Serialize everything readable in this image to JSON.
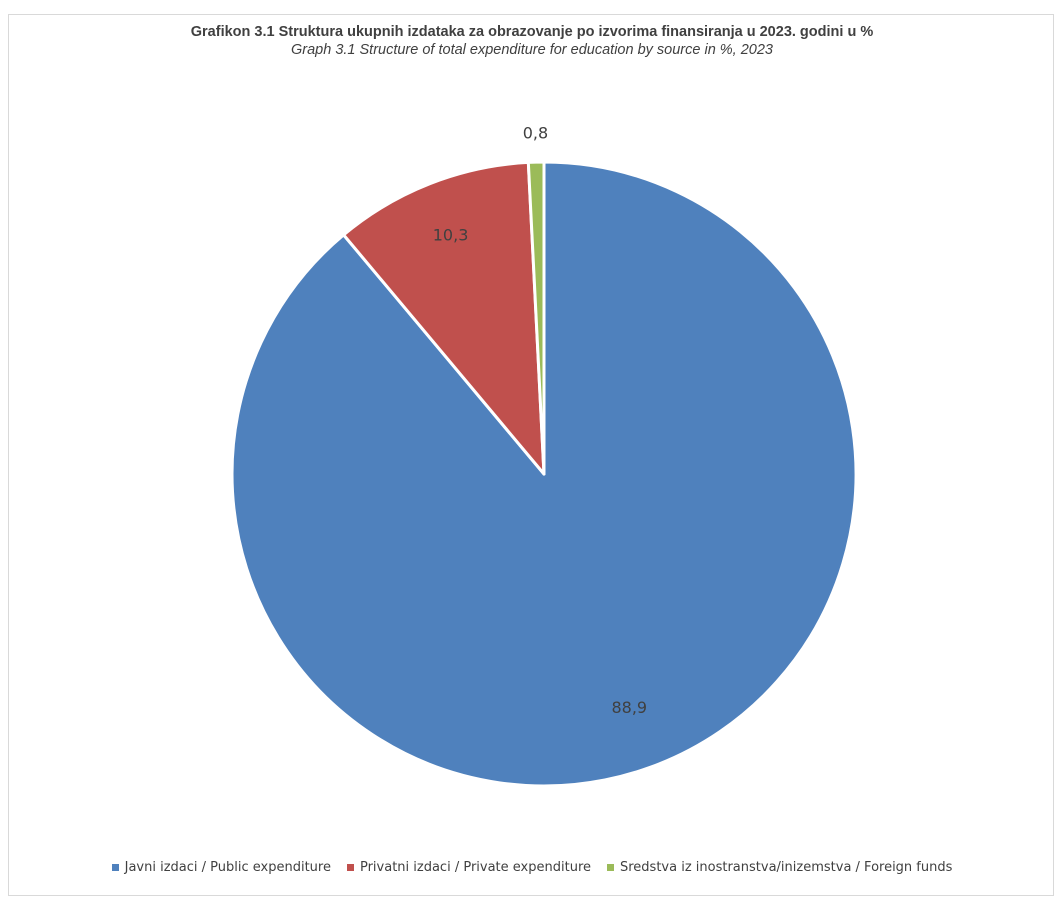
{
  "chart_data": {
    "type": "pie",
    "title": "Grafikon 3.1 Struktura ukupnih izdataka za obrazovanje po izvorima finansiranja u 2023. godini u %",
    "subtitle": "Graph 3.1 Structure of total expenditure for education  by source in %, 2023",
    "series": [
      {
        "name": "Javni izdaci / Public expenditure",
        "value": 88.9,
        "label": "88,9",
        "color": "#4f81bd"
      },
      {
        "name": "Privatni izdaci / Private expenditure",
        "value": 10.3,
        "label": "10,3",
        "color": "#c0504d"
      },
      {
        "name": "Sredstva iz inostranstva/inizemstva / Foreign funds",
        "value": 0.8,
        "label": "0,8",
        "color": "#9bbb59"
      }
    ],
    "start_angle": "12 o'clock",
    "direction": "clockwise",
    "legend_position": "bottom"
  }
}
